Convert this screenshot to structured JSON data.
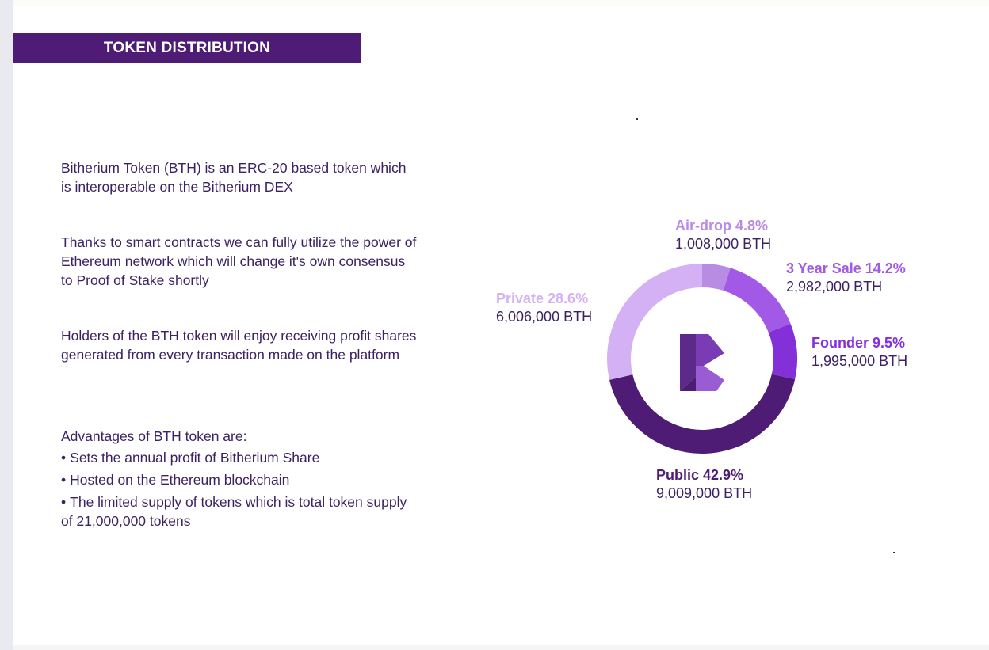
{
  "header": {
    "title": "TOKEN DISTRIBUTION"
  },
  "content": {
    "paragraph_1": "Bitherium Token (BTH) is an ERC-20 based token which is interoperable on the Bitherium DEX",
    "paragraph_2": "Thanks to smart contracts we can fully utilize the power of Ethereum network which will change it's own consensus to Proof of Stake shortly",
    "paragraph_3": "Holders of the BTH token will enjoy receiving profit shares generated from every transaction made on the platform",
    "advantages_title": "Advantages of BTH token are:",
    "bullet_mark": "•",
    "advantages": [
      "Sets the annual profit of Bitherium Share",
      "Hosted on the Ethereum blockchain",
      "The limited supply of tokens which is total token supply of 21,000,000 tokens"
    ]
  },
  "chart_data": {
    "type": "pie",
    "title": "",
    "center_icon": "bitherium-logo",
    "unit": "BTH",
    "series": [
      {
        "name": "Air-drop",
        "label": "Air-drop 4.8%",
        "percent": 4.8,
        "amount": "1,008,000 BTH",
        "value": 1008000,
        "color": "#b98ce3"
      },
      {
        "name": "3 Year Sale",
        "label": "3 Year Sale 14.2%",
        "percent": 14.2,
        "amount": "2,982,000 BTH",
        "value": 2982000,
        "color": "#a25ae6"
      },
      {
        "name": "Founder",
        "label": "Founder 9.5%",
        "percent": 9.5,
        "amount": "1,995,000 BTH",
        "value": 1995000,
        "color": "#8330d8"
      },
      {
        "name": "Public",
        "label": "Public 42.9%",
        "percent": 42.9,
        "amount": "9,009,000 BTH",
        "value": 9009000,
        "color": "#4e1c75"
      },
      {
        "name": "Private",
        "label": "Private 28.6%",
        "percent": 28.6,
        "amount": "6,006,000 BTH",
        "value": 6006000,
        "color": "#d3b1f4"
      }
    ]
  }
}
